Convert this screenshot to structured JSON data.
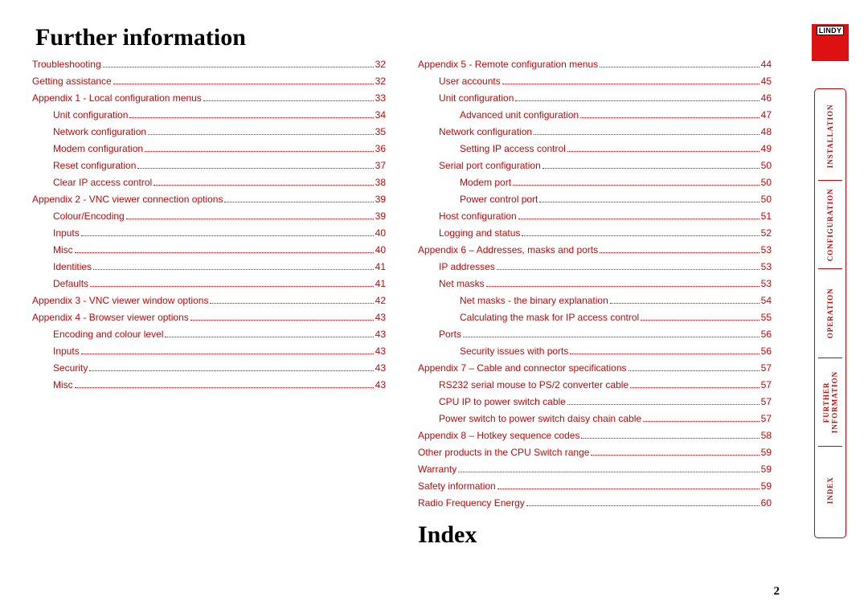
{
  "heading": "Further information",
  "index_heading": "Index",
  "page_number": "2",
  "logo_text": "LINDY",
  "sidebar_tabs": [
    "INSTALLATION",
    "CONFIGURATION",
    "OPERATION",
    "FURTHER\nINFORMATION",
    "INDEX"
  ],
  "col1": [
    {
      "label": "Troubleshooting",
      "page": "32",
      "indent": 0
    },
    {
      "label": "Getting assistance",
      "page": "32",
      "indent": 0
    },
    {
      "label": "Appendix 1 - Local configuration menus",
      "page": "33",
      "indent": 0
    },
    {
      "label": "Unit configuration",
      "page": "34",
      "indent": 1
    },
    {
      "label": "Network configuration",
      "page": "35",
      "indent": 1
    },
    {
      "label": "Modem configuration",
      "page": "36",
      "indent": 1
    },
    {
      "label": "Reset configuration",
      "page": "37",
      "indent": 1
    },
    {
      "label": "Clear IP access control",
      "page": "38",
      "indent": 1
    },
    {
      "label": "Appendix 2 - VNC viewer connection options",
      "page": "39",
      "indent": 0
    },
    {
      "label": "Colour/Encoding",
      "page": "39",
      "indent": 1
    },
    {
      "label": "Inputs",
      "page": "40",
      "indent": 1
    },
    {
      "label": "Misc",
      "page": "40",
      "indent": 1
    },
    {
      "label": "Identities",
      "page": "41",
      "indent": 1
    },
    {
      "label": "Defaults",
      "page": "41",
      "indent": 1
    },
    {
      "label": "Appendix 3 - VNC viewer window options",
      "page": "42",
      "indent": 0
    },
    {
      "label": "Appendix 4 - Browser viewer options",
      "page": "43",
      "indent": 0
    },
    {
      "label": "Encoding and colour level",
      "page": "43",
      "indent": 1
    },
    {
      "label": "Inputs",
      "page": "43",
      "indent": 1
    },
    {
      "label": "Security",
      "page": "43",
      "indent": 1
    },
    {
      "label": "Misc",
      "page": "43",
      "indent": 1
    }
  ],
  "col2": [
    {
      "label": "Appendix 5 - Remote configuration menus",
      "page": "44",
      "indent": 0
    },
    {
      "label": "User accounts",
      "page": "45",
      "indent": 1
    },
    {
      "label": "Unit configuration",
      "page": "46",
      "indent": 1
    },
    {
      "label": "Advanced unit configuration",
      "page": "47",
      "indent": 2
    },
    {
      "label": "Network configuration",
      "page": "48",
      "indent": 1
    },
    {
      "label": "Setting IP access control",
      "page": "49",
      "indent": 2
    },
    {
      "label": "Serial port configuration",
      "page": "50",
      "indent": 1
    },
    {
      "label": "Modem port",
      "page": "50",
      "indent": 2
    },
    {
      "label": "Power control port",
      "page": "50",
      "indent": 2
    },
    {
      "label": "Host configuration",
      "page": "51",
      "indent": 1
    },
    {
      "label": "Logging and status",
      "page": "52",
      "indent": 1
    },
    {
      "label": "Appendix 6 – Addresses, masks and ports",
      "page": "53",
      "indent": 0
    },
    {
      "label": "IP addresses",
      "page": "53",
      "indent": 1
    },
    {
      "label": "Net masks",
      "page": "53",
      "indent": 1
    },
    {
      "label": "Net masks - the binary explanation",
      "page": "54",
      "indent": 2
    },
    {
      "label": "Calculating the mask for IP access control",
      "page": "55",
      "indent": 2
    },
    {
      "label": "Ports",
      "page": "56",
      "indent": 1
    },
    {
      "label": "Security issues with ports",
      "page": "56",
      "indent": 2
    },
    {
      "label": "Appendix 7 – Cable and connector specifications",
      "page": "57",
      "indent": 0
    },
    {
      "label": "RS232 serial mouse to PS/2 converter cable",
      "page": "57",
      "indent": 1
    },
    {
      "label": "CPU IP to power switch cable",
      "page": "57",
      "indent": 1
    },
    {
      "label": "Power switch to power switch daisy chain cable",
      "page": "57",
      "indent": 1
    },
    {
      "label": "Appendix 8 – Hotkey sequence codes",
      "page": "58",
      "indent": 0
    },
    {
      "label": "Other products in the CPU Switch range",
      "page": "59",
      "indent": 0
    },
    {
      "label": "Warranty",
      "page": "59",
      "indent": 0
    },
    {
      "label": "Safety information",
      "page": "59",
      "indent": 0
    },
    {
      "label": "Radio Frequency Energy",
      "page": "60",
      "indent": 0
    }
  ],
  "colors": {
    "link": "#c20808",
    "logo_bg": "#d11",
    "border": "#c00"
  }
}
